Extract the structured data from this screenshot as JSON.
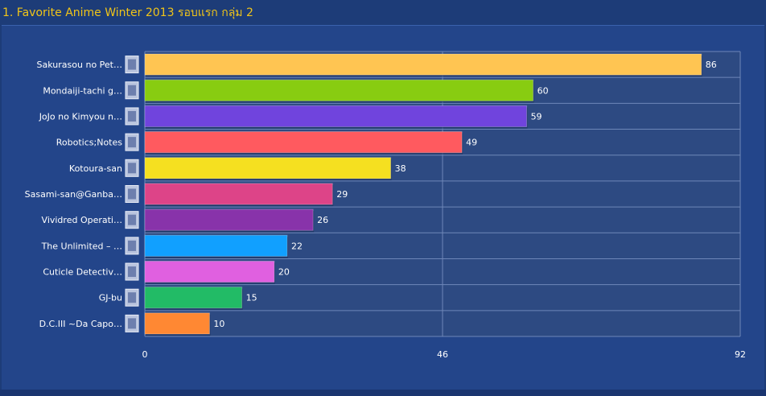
{
  "title": "1. Favorite Anime Winter 2013 รอบแรก กลุ่ม 2",
  "chart_data": {
    "type": "bar",
    "orientation": "horizontal",
    "categories": [
      "Sakurasou no Pet…",
      "Mondaiji-tachi g…",
      "JoJo no Kimyou n…",
      "Robotics;Notes",
      "Kotoura-san",
      "Sasami-san@Ganba…",
      "Vividred Operati…",
      "The Unlimited – …",
      "Cuticle Detectiv…",
      "GJ-bu",
      "D.C.III ~Da Capo…"
    ],
    "values": [
      86,
      60,
      59,
      49,
      38,
      29,
      26,
      22,
      20,
      15,
      10
    ],
    "colors": [
      "#ffc552",
      "#88cc11",
      "#7044dd",
      "#ff5a5f",
      "#f5e020",
      "#dd4488",
      "#8833aa",
      "#11a0ff",
      "#e060e0",
      "#22bb66",
      "#ff8833"
    ],
    "xlim": [
      0,
      92
    ],
    "xticks": [
      "0",
      "46",
      "92"
    ],
    "grid": true,
    "legend": "none"
  }
}
